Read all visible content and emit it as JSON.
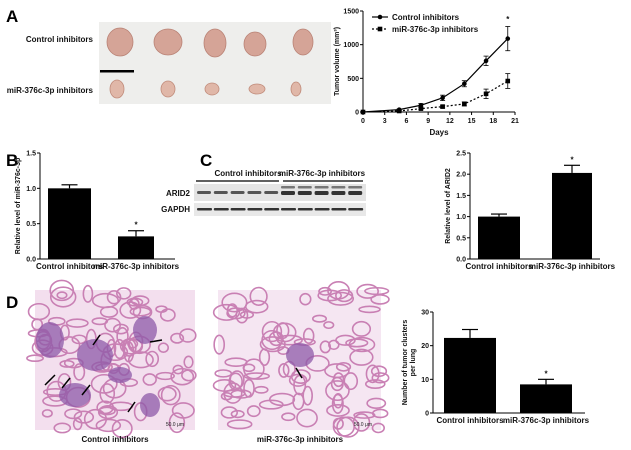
{
  "panels": {
    "A": "A",
    "B": "B",
    "C": "C",
    "D": "D"
  },
  "panelA": {
    "row_labels": [
      "Control inhibitors",
      "miR-376c-3p inhibitors"
    ]
  },
  "blot": {
    "group_labels": [
      "Control inhibitors",
      "miR-376c-3p inhibitors"
    ],
    "row_labels": [
      "ARID2",
      "GAPDH"
    ]
  },
  "histology": {
    "captions": [
      "Control inhibitors",
      "miR-376c-3p inhibitors"
    ],
    "scale_bar": "50.0 μm"
  },
  "colors": {
    "bar": "#000000",
    "tumor": "#d9a89c",
    "tissue_pink": "#e4a9cc",
    "tissue_purple": "#7a4a9a"
  },
  "chart_data": [
    {
      "id": "tumor-volume",
      "type": "line",
      "xlabel": "Days",
      "ylabel": "Tumor volume (mm³)",
      "xlim": [
        0,
        21
      ],
      "ylim": [
        0,
        1500
      ],
      "xticks": [
        0,
        3,
        6,
        9,
        12,
        15,
        18,
        21
      ],
      "yticks": [
        0,
        500,
        1000,
        1500
      ],
      "x": [
        0,
        5,
        8,
        11,
        14,
        17,
        20
      ],
      "series": [
        {
          "name": "Control inhibitors",
          "values": [
            0,
            35,
            100,
            210,
            420,
            760,
            1090
          ],
          "errors": [
            0,
            10,
            25,
            40,
            45,
            70,
            180
          ],
          "marker": "circle",
          "line": "solid"
        },
        {
          "name": "miR-376c-3p inhibitors",
          "values": [
            0,
            15,
            50,
            80,
            120,
            270,
            460
          ],
          "errors": [
            0,
            8,
            15,
            20,
            30,
            70,
            110
          ],
          "marker": "square",
          "line": "dotted"
        }
      ],
      "annotations": [
        "*"
      ],
      "legend": "top-left",
      "grid": false
    },
    {
      "id": "mir-level",
      "type": "bar",
      "ylabel": "Relative level of miR-376c-3p",
      "categories": [
        "Control inhibitors",
        "miR-376c-3p inhibitors"
      ],
      "values": [
        1.0,
        0.32
      ],
      "errors": [
        0.05,
        0.08
      ],
      "ylim": [
        0,
        1.5
      ],
      "yticks": [
        0.0,
        0.5,
        1.0,
        1.5
      ],
      "annotations": [
        "",
        "*"
      ]
    },
    {
      "id": "arid2-level",
      "type": "bar",
      "ylabel": "Relative level of ARID2",
      "categories": [
        "Control inhibitors",
        "miR-376c-3p inhibitors"
      ],
      "values": [
        1.0,
        2.03
      ],
      "errors": [
        0.06,
        0.18
      ],
      "ylim": [
        0,
        2.5
      ],
      "yticks": [
        0.0,
        0.5,
        1.0,
        1.5,
        2.0,
        2.5
      ],
      "annotations": [
        "",
        "*"
      ]
    },
    {
      "id": "tumor-clusters",
      "type": "bar",
      "ylabel": "Number of tumor clusters per lung",
      "categories": [
        "Control inhibitors",
        "miR-376c-3p inhibitors"
      ],
      "values": [
        22.3,
        8.5
      ],
      "errors": [
        2.5,
        1.5
      ],
      "ylim": [
        0,
        30
      ],
      "yticks": [
        0,
        10,
        20,
        30
      ],
      "annotations": [
        "",
        "*"
      ]
    }
  ]
}
